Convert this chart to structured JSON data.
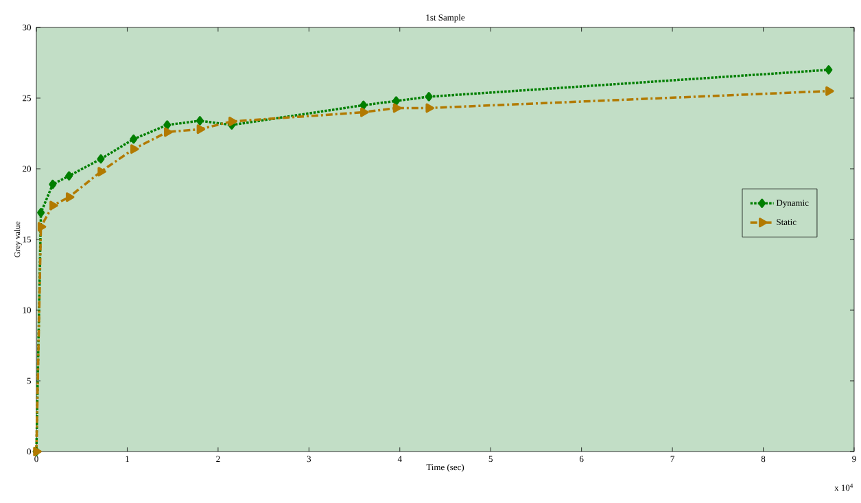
{
  "chart_data": {
    "type": "line",
    "title": "1st Sample",
    "xlabel": "Time (sec)",
    "ylabel": "Grey value",
    "x": [
      0,
      0.05,
      0.18,
      0.36,
      0.71,
      1.07,
      1.44,
      1.8,
      2.15,
      3.6,
      3.96,
      4.32,
      8.72
    ],
    "series": [
      {
        "name": "Dynamic",
        "color": "#007f00",
        "marker": "diamond",
        "line_style": "dotted",
        "values": [
          0,
          16.9,
          18.9,
          19.5,
          20.7,
          22.1,
          23.1,
          23.4,
          23.1,
          24.5,
          24.8,
          25.1,
          27.0
        ]
      },
      {
        "name": "Static",
        "color": "#b27a00",
        "marker": "triangle",
        "line_style": "dashdot",
        "values": [
          0,
          15.9,
          17.4,
          18.0,
          19.8,
          21.4,
          22.6,
          22.8,
          23.35,
          24.0,
          24.3,
          24.3,
          25.5
        ]
      }
    ],
    "xlim": [
      0,
      9
    ],
    "ylim": [
      0,
      30
    ],
    "xticks": [
      0,
      1,
      2,
      3,
      4,
      5,
      6,
      7,
      8,
      9
    ],
    "yticks": [
      0,
      5,
      10,
      15,
      20,
      25,
      30
    ],
    "annotations": [
      "x 10$^{4}$"
    ],
    "legend": "right",
    "grid": false
  }
}
